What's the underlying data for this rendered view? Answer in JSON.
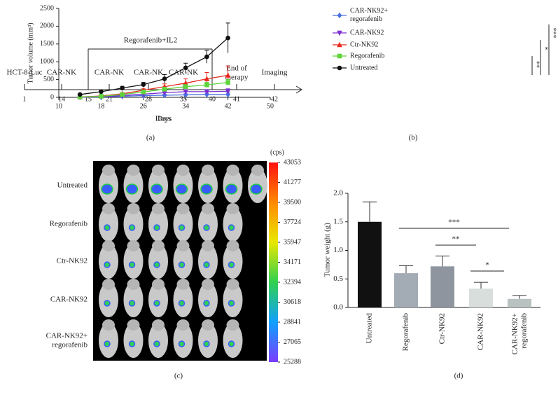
{
  "timeline": {
    "bracket": "Regorafenib+IL2",
    "axis_label": "Days",
    "days": [
      1,
      14,
      15,
      21,
      28,
      35,
      40,
      41,
      42
    ],
    "events": [
      "HCT-8-Luc",
      "CAR-NK",
      null,
      "CAR-NK",
      "CAR-NK",
      "CAR-NK",
      null,
      "End of\ntherapy",
      "Imaging"
    ]
  },
  "chart_data": [
    {
      "type": "line",
      "xlabel": "Days",
      "ylabel": "Tumor volume (mm³)",
      "xlim": [
        10,
        50
      ],
      "xticks": [
        10,
        18,
        26,
        34,
        42,
        50
      ],
      "ylim": [
        0,
        2500
      ],
      "yticks": [
        0,
        500,
        1000,
        1500,
        2000,
        2500
      ],
      "x": [
        14,
        18,
        22,
        26,
        30,
        34,
        38,
        42
      ],
      "series": [
        {
          "name": "CAR-NK92+\nregorafenib",
          "color": "#4a6fe0",
          "marker": "diamond",
          "values": [
            5,
            10,
            30,
            50,
            60,
            70,
            80,
            80
          ],
          "errors": [
            5,
            8,
            15,
            20,
            25,
            30,
            40,
            45
          ]
        },
        {
          "name": "CAR-NK92",
          "color": "#7b2fd0",
          "marker": "triangle-down",
          "values": [
            5,
            20,
            50,
            90,
            130,
            160,
            160,
            170
          ],
          "errors": [
            5,
            10,
            20,
            30,
            40,
            50,
            60,
            70
          ]
        },
        {
          "name": "Ctr-NK92",
          "color": "#e8281e",
          "marker": "triangle",
          "values": [
            10,
            40,
            100,
            200,
            300,
            400,
            520,
            620
          ],
          "errors": [
            10,
            15,
            30,
            40,
            80,
            120,
            180,
            260
          ]
        },
        {
          "name": "Regorafenib",
          "color": "#5fd43c",
          "marker": "square",
          "values": [
            10,
            30,
            80,
            150,
            230,
            300,
            350,
            420
          ],
          "errors": [
            8,
            12,
            25,
            35,
            50,
            60,
            70,
            80
          ]
        },
        {
          "name": "Untreated",
          "color": "#111111",
          "marker": "circle",
          "values": [
            80,
            160,
            260,
            360,
            520,
            830,
            1140,
            1670
          ],
          "errors": [
            20,
            30,
            50,
            60,
            120,
            130,
            180,
            420
          ]
        }
      ],
      "annotations": [
        "**",
        "*",
        "***"
      ]
    },
    {
      "type": "bar",
      "ylabel": "Tumor weight (g)",
      "categories": [
        "Untreated",
        "Regorafenib",
        "Ctr-NK92",
        "CAR-NK92",
        "CAR-NK92+\nregorafenib"
      ],
      "values": [
        1.5,
        0.6,
        0.72,
        0.33,
        0.15
      ],
      "errors": [
        0.35,
        0.13,
        0.18,
        0.11,
        0.06
      ],
      "colors": [
        "#111111",
        "#a3abb5",
        "#8e959e",
        "#d8dedb",
        "#b9c1c1"
      ],
      "ylim": [
        0,
        2
      ],
      "yticks": [
        {
          "value": 0,
          "label": "0.0"
        },
        0.5,
        {
          "value": 1,
          "label": "1.0"
        },
        1.5,
        {
          "value": 2,
          "label": "2.0"
        }
      ],
      "annotations": [
        "***",
        "**",
        "*"
      ]
    }
  ],
  "imaging": {
    "unit": "(cps)",
    "rows": [
      "Untreated",
      "Regorafenib",
      "Ctr-NK92",
      "CAR-NK92",
      "CAR-NK92+\nregorafenib"
    ],
    "colorbar": [
      43053,
      41277,
      39500,
      37724,
      35947,
      34171,
      32394,
      30618,
      28841,
      27065,
      25288
    ]
  },
  "panel_labels": [
    "(a)",
    "(b)",
    "(c)",
    "(d)"
  ]
}
